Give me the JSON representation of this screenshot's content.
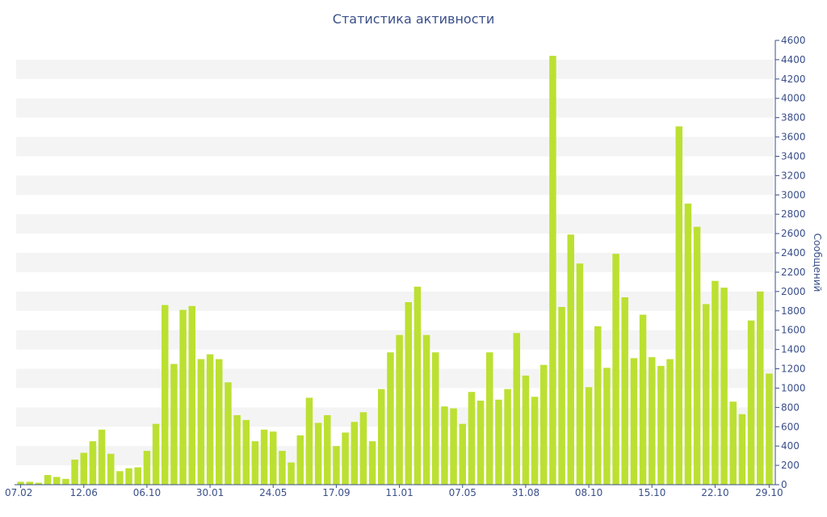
{
  "chart_data": {
    "type": "bar",
    "title": "Статистика активности",
    "xlabel": "",
    "ylabel": "Сообщений",
    "ylim": [
      0,
      4600
    ],
    "ytick_step": 200,
    "grid": "alternating horizontal bands",
    "x_tick_labels": [
      "07.02",
      "12.06",
      "06.10",
      "30.01",
      "24.05",
      "17.09",
      "11.01",
      "07.05",
      "31.08",
      "08.10",
      "15.10",
      "22.10",
      "29.10"
    ],
    "series": [
      {
        "values": [
          30,
          30,
          20,
          100,
          80,
          60,
          260,
          330,
          450,
          570,
          320,
          140,
          170,
          180,
          350,
          630,
          1860,
          1250,
          1810,
          1850,
          1300,
          1350,
          1300,
          1060,
          720,
          670,
          450,
          570,
          550,
          350,
          230,
          510,
          900,
          640,
          720,
          400,
          540,
          650,
          750,
          450,
          990,
          1370,
          1550,
          1890,
          2050,
          1550,
          1370,
          810,
          790,
          630,
          960,
          870,
          1370,
          880,
          990,
          1570,
          1130,
          910,
          1240,
          4440,
          1840,
          2590,
          2290,
          1010,
          1640,
          1210,
          2390,
          1940,
          1310,
          1760,
          1320,
          1230,
          1300,
          3710,
          2910,
          2670,
          1870,
          2110,
          2040,
          860,
          730,
          1700,
          2000,
          1150
        ]
      }
    ],
    "highlight_bar": {
      "index": 84,
      "total": 1150,
      "base": 540
    },
    "colors": {
      "bar": "#bce032",
      "highlight": "#e8662c",
      "axis_text": "#3a4f8a",
      "band": "#f4f4f4",
      "axis_line": "#3a4f8a"
    }
  }
}
